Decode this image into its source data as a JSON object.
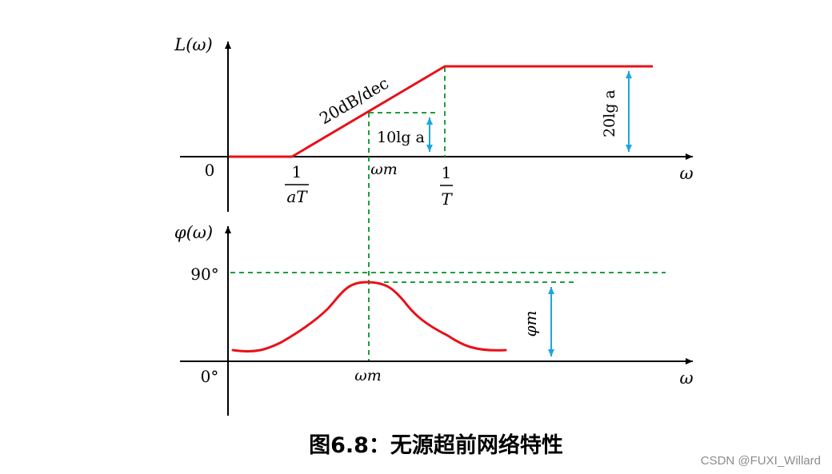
{
  "magnitude_plot": {
    "y_axis_label": "L(ω)",
    "x_axis_label": "ω",
    "origin_label": "0",
    "slope_label": "20dB/dec",
    "corner1": {
      "numerator": "1",
      "denominator": "aT"
    },
    "corner2": {
      "numerator": "1",
      "denominator": "T"
    },
    "omega_m_label": "ωm",
    "mid_gain_label": "10lg a",
    "max_gain_label": "20lg a"
  },
  "phase_plot": {
    "y_axis_label": "φ(ω)",
    "x_axis_label": "ω",
    "tick_90_label": "90°",
    "tick_0_label": "0°",
    "omega_m_label": "ωm",
    "phi_m_label": "φm"
  },
  "caption": "图6.8：无源超前网络特性",
  "watermark": "CSDN @FUXI_Willard",
  "colors": {
    "curve": "#e8111a",
    "guide": "#1e9e3c",
    "arrow": "#1ca6e0",
    "axis": "#000000"
  }
}
